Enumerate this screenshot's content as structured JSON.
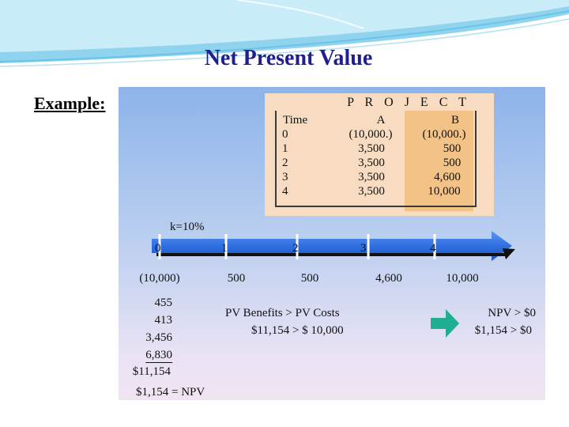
{
  "slide": {
    "title": "Net Present Value",
    "example_label": "Example:"
  },
  "table": {
    "project_header": "P R O J E C T",
    "time_header": "Time",
    "col_a_header": "A",
    "col_b_header": "B",
    "rows": [
      {
        "time": "0",
        "a": "(10,000.)",
        "b": "(10,000.)"
      },
      {
        "time": "1",
        "a": "3,500",
        "b": "500"
      },
      {
        "time": "2",
        "a": "3,500",
        "b": "500"
      },
      {
        "time": "3",
        "a": "3,500",
        "b": "4,600"
      },
      {
        "time": "4",
        "a": "3,500",
        "b": "10,000"
      }
    ]
  },
  "timeline": {
    "rate_label": "k=10%",
    "periods": [
      "0",
      "1",
      "2",
      "3",
      "4"
    ],
    "cash_flows": [
      "(10,000)",
      "500",
      "500",
      "4,600",
      "10,000"
    ]
  },
  "pv_list": {
    "values": [
      "455",
      "413",
      "3,456",
      "6,830"
    ],
    "total": "$11,154",
    "npv_line": "$1,154 = NPV"
  },
  "comparison": {
    "line1": "PV Benefits > PV Costs",
    "line2": "$11,154 > $ 10,000"
  },
  "result": {
    "line1": "NPV > $0",
    "line2": "$1,154 > $0"
  },
  "icons": {
    "arrow": "right-arrow-icon",
    "arrow_color": "#1fae8f"
  },
  "colors": {
    "title": "#1f1f8f",
    "timeline_arrow": "#2f6fe0",
    "table_bg": "#f7dcc1",
    "b_column": "#f3c286"
  }
}
